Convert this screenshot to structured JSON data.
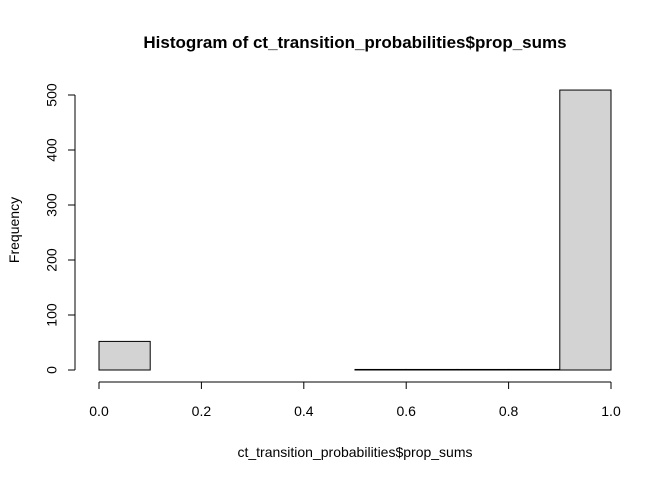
{
  "chart_data": {
    "type": "bar",
    "subtype": "histogram",
    "title": "Histogram of ct_transition_probabilities$prop_sums",
    "xlabel": "ct_transition_probabilities$prop_sums",
    "ylabel": "Frequency",
    "xlim": [
      0.0,
      1.0
    ],
    "ylim": [
      0,
      510
    ],
    "x_ticks": [
      "0.0",
      "0.2",
      "0.4",
      "0.6",
      "0.8",
      "1.0"
    ],
    "y_ticks": [
      "0",
      "100",
      "200",
      "300",
      "400",
      "500"
    ],
    "bins": [
      {
        "start": 0.0,
        "end": 0.1,
        "count": 52
      },
      {
        "start": 0.1,
        "end": 0.2,
        "count": 0
      },
      {
        "start": 0.2,
        "end": 0.3,
        "count": 0
      },
      {
        "start": 0.3,
        "end": 0.4,
        "count": 0
      },
      {
        "start": 0.4,
        "end": 0.5,
        "count": 0
      },
      {
        "start": 0.5,
        "end": 0.6,
        "count": 1
      },
      {
        "start": 0.6,
        "end": 0.7,
        "count": 1
      },
      {
        "start": 0.7,
        "end": 0.8,
        "count": 1
      },
      {
        "start": 0.8,
        "end": 0.9,
        "count": 1
      },
      {
        "start": 0.9,
        "end": 1.0,
        "count": 509
      }
    ],
    "bar_fill": "#d3d3d3",
    "bar_stroke": "#000000",
    "grid": false,
    "legend": "none"
  }
}
